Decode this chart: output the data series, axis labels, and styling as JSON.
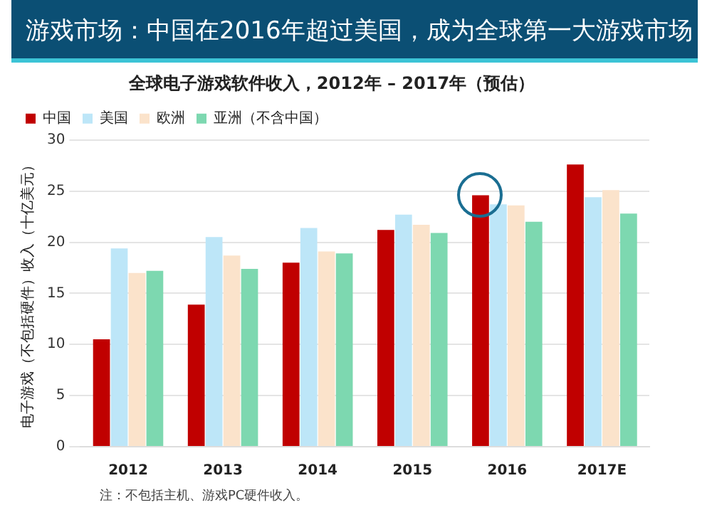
{
  "chart_data": {
    "type": "bar",
    "title": "游戏市场：中国在2016年超过美国，成为全球第一大游戏市场",
    "subtitle": "全球电子游戏软件收入，2012年 – 2017年（预估）",
    "ylabel": "电子游戏（不包括硬件）收入（十亿美元）",
    "categories": [
      "2012",
      "2013",
      "2014",
      "2015",
      "2016",
      "2017E"
    ],
    "series": [
      {
        "name": "中国",
        "color": "#c00000",
        "values": [
          10.5,
          13.9,
          18.0,
          21.2,
          24.6,
          27.6
        ]
      },
      {
        "name": "美国",
        "color": "#bde6f8",
        "values": [
          19.4,
          20.5,
          21.4,
          22.7,
          23.7,
          24.4
        ]
      },
      {
        "name": "欧洲",
        "color": "#fbe3cb",
        "values": [
          17.0,
          18.7,
          19.1,
          21.7,
          23.6,
          25.1
        ]
      },
      {
        "name": "亚洲（不含中国）",
        "color": "#7dd8b0",
        "values": [
          17.2,
          17.4,
          18.9,
          20.9,
          22.0,
          22.8
        ]
      }
    ],
    "ylim": [
      0,
      30
    ],
    "yticks": [
      0,
      5,
      10,
      15,
      20,
      25,
      30
    ],
    "grid": "y",
    "legend": "top left",
    "annotations": [
      "注：不包括主机、游戏PC硬件收入。"
    ]
  }
}
